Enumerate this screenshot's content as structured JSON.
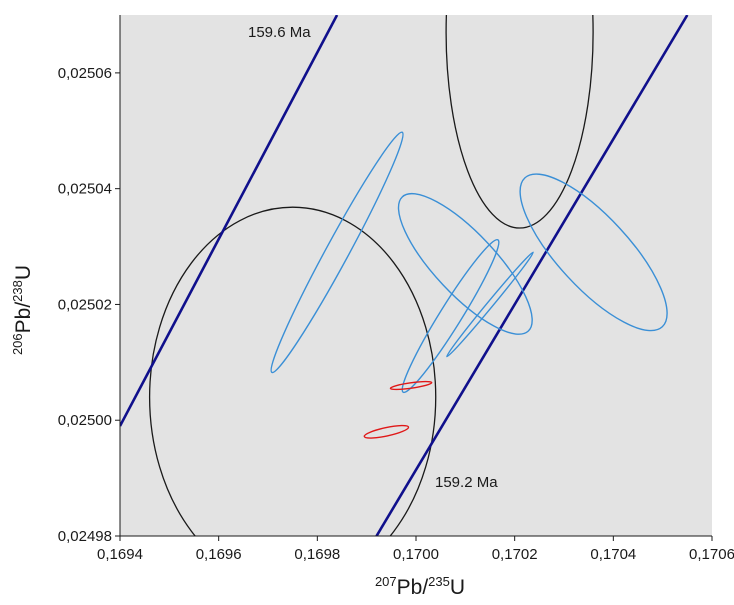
{
  "colors": {
    "plot_background": "#e3e3e3",
    "concordia": "#10108c",
    "blue_ellipses": "#3a8fd6",
    "red_ellipses": "#e01818",
    "black_ellipses": "#1a1a1a"
  },
  "chart_data": {
    "type": "scatter",
    "title": "",
    "xlabel": {
      "sup": "207",
      "main": "Pb/",
      "sup2": "235",
      "main2": "U"
    },
    "ylabel": {
      "sup": "206",
      "main": "Pb/",
      "sup2": "238",
      "main2": "U"
    },
    "xlim": [
      0.1694,
      0.1706
    ],
    "ylim": [
      0.02498,
      0.02507
    ],
    "x_ticks": [
      {
        "value": 0.1694,
        "label": "0,1694"
      },
      {
        "value": 0.1696,
        "label": "0,1696"
      },
      {
        "value": 0.1698,
        "label": "0,1698"
      },
      {
        "value": 0.17,
        "label": "0,1700"
      },
      {
        "value": 0.1702,
        "label": "0,1702"
      },
      {
        "value": 0.1704,
        "label": "0,1704"
      },
      {
        "value": 0.1706,
        "label": "0,1706"
      }
    ],
    "y_ticks": [
      {
        "value": 0.02498,
        "label": "0,02498"
      },
      {
        "value": 0.025,
        "label": "0,02500"
      },
      {
        "value": 0.02502,
        "label": "0,02502"
      },
      {
        "value": 0.02504,
        "label": "0,02504"
      },
      {
        "value": 0.02506,
        "label": "0,02506"
      }
    ],
    "grid": false,
    "concordia_lines": [
      {
        "label": "159.6 Ma",
        "points": [
          [
            0.1694,
            0.024999
          ],
          [
            0.16984,
            0.02507
          ]
        ]
      },
      {
        "label": "159.2 Ma",
        "points": [
          [
            0.16992,
            0.02498
          ],
          [
            0.17055,
            0.02507
          ]
        ]
      }
    ],
    "black_ellipses": [
      {
        "cx": 0.16975,
        "cy": 0.025004,
        "rx": 0.00029,
        "ry": 3.28e-05
      },
      {
        "cx": 0.17021,
        "cy": 0.025067,
        "rx": 0.000149,
        "ry": 3.38e-05
      }
    ],
    "blue_ellipses": [
      {
        "cx": 0.16984,
        "cy": 0.025029,
        "rx": 2.3e-05,
        "ry": 2.36e-05,
        "theta": 28.5
      },
      {
        "cx": 0.1701,
        "cy": 0.025027,
        "rx": 6.2e-05,
        "ry": 1.59e-05,
        "theta": -43.2
      },
      {
        "cx": 0.17007,
        "cy": 0.025018,
        "rx": 2.2e-05,
        "ry": 1.55e-05,
        "theta": 31.9
      },
      {
        "cx": 0.17036,
        "cy": 0.025029,
        "rx": 7.2e-05,
        "ry": 1.75e-05,
        "theta": -42.7
      },
      {
        "cx": 0.17015,
        "cy": 0.02502,
        "rx": 6e-06,
        "ry": 1.17e-05,
        "theta": 39.6
      }
    ],
    "red_ellipses": [
      {
        "cx": 0.16994,
        "cy": 0.024998,
        "rx": 8.5e-06,
        "ry": 3.9e-06,
        "theta": 78
      },
      {
        "cx": 0.16999,
        "cy": 0.025006,
        "rx": 5.5e-06,
        "ry": 3.6e-06,
        "theta": 82
      }
    ]
  }
}
